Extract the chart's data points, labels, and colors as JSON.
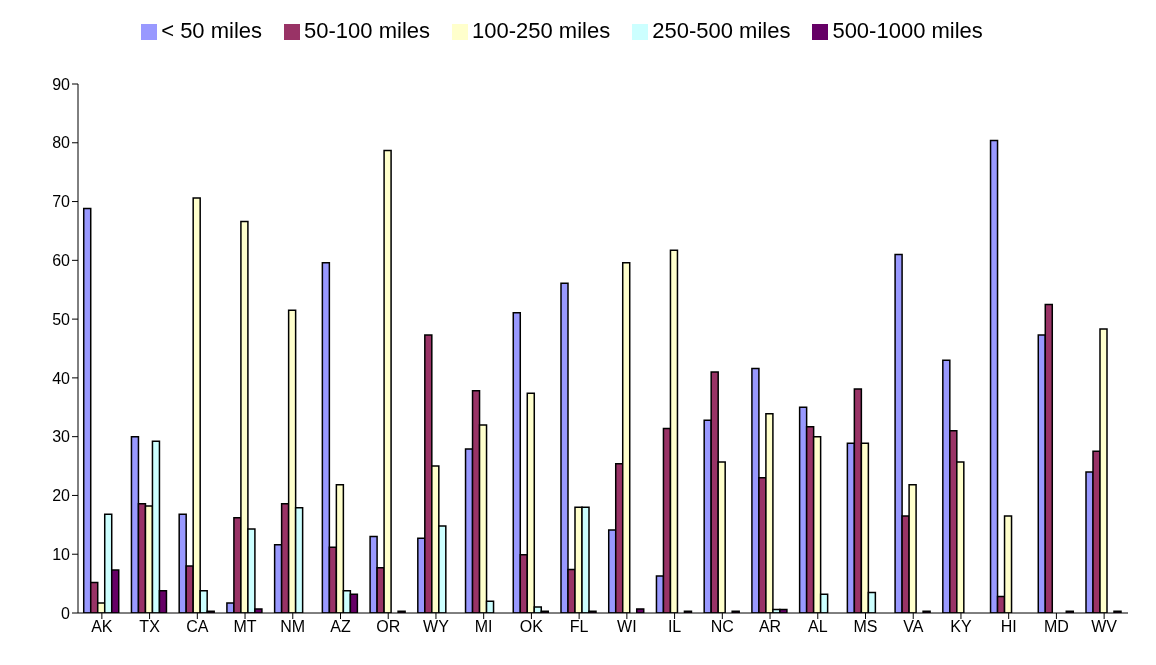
{
  "chart_data": {
    "type": "bar",
    "categories": [
      "AK",
      "TX",
      "CA",
      "MT",
      "NM",
      "AZ",
      "OR",
      "WY",
      "MI",
      "OK",
      "FL",
      "WI",
      "IL",
      "NC",
      "AR",
      "AL",
      "MS",
      "VA",
      "KY",
      "HI",
      "MD",
      "WV"
    ],
    "series": [
      {
        "name": "< 50 miles",
        "color": "#9999ff",
        "values": [
          68.8,
          30,
          16.8,
          1.7,
          11.6,
          59.6,
          13,
          12.7,
          27.9,
          51.1,
          56.1,
          14.1,
          6.3,
          32.8,
          41.6,
          35,
          28.9,
          61,
          43,
          80.4,
          47.3,
          24
        ]
      },
      {
        "name": "50-100 miles",
        "color": "#993366",
        "values": [
          5.2,
          18.6,
          8,
          16.2,
          18.6,
          11.2,
          7.7,
          47.3,
          37.8,
          9.9,
          7.4,
          25.4,
          31.4,
          41,
          23,
          31.7,
          38.1,
          16.5,
          31,
          2.8,
          52.5,
          27.5
        ]
      },
      {
        "name": "100-250 miles",
        "color": "#ffffcc",
        "values": [
          1.7,
          18.2,
          70.6,
          66.6,
          51.5,
          21.8,
          78.7,
          25,
          32,
          37.4,
          18,
          59.6,
          61.7,
          25.7,
          33.9,
          30,
          28.9,
          21.8,
          25.7,
          16.5,
          0,
          48.3
        ]
      },
      {
        "name": "250-500 miles",
        "color": "#ccffff",
        "values": [
          16.8,
          29.2,
          3.8,
          14.3,
          17.9,
          3.8,
          null,
          14.8,
          2,
          1,
          18,
          null,
          null,
          null,
          0.6,
          3.2,
          3.5,
          0,
          0,
          0,
          0,
          0
        ]
      },
      {
        "name": "500-1000 miles",
        "color": "#660066",
        "values": [
          7.3,
          3.8,
          0.3,
          0.7,
          0,
          3.2,
          0.3,
          0,
          0,
          0.3,
          0.3,
          0.7,
          0.3,
          0.3,
          0.6,
          0,
          0,
          0.3,
          0,
          0,
          0.3,
          0.3
        ]
      }
    ],
    "ylim": [
      0,
      90
    ],
    "yticks": [
      0,
      10,
      20,
      30,
      40,
      50,
      60,
      70,
      80,
      90
    ],
    "grid": false,
    "legend": "top"
  }
}
